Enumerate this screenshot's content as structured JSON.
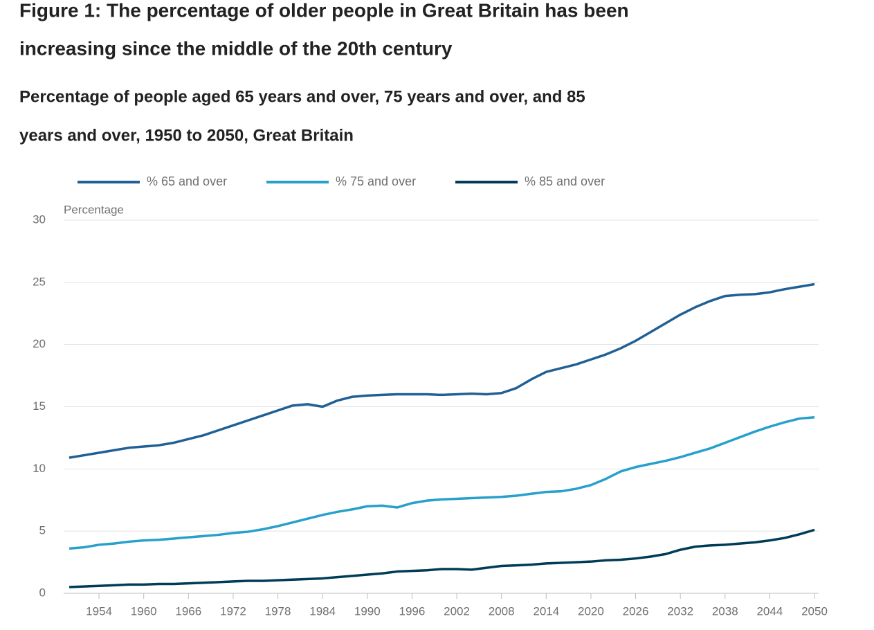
{
  "chart_data": {
    "type": "line",
    "title": [
      "Figure 1: The percentage of older people in Great Britain has been",
      "increasing since the middle of the 20th century"
    ],
    "subtitle": [
      "Percentage of people aged 65 years and over, 75 years and over, and 85",
      "years and over, 1950 to 2050, Great Britain"
    ],
    "ylabel": "Percentage",
    "x": [
      1950,
      1952,
      1954,
      1956,
      1958,
      1960,
      1962,
      1964,
      1966,
      1968,
      1970,
      1972,
      1974,
      1976,
      1978,
      1980,
      1982,
      1984,
      1986,
      1988,
      1990,
      1992,
      1994,
      1996,
      1998,
      2000,
      2002,
      2004,
      2006,
      2008,
      2010,
      2012,
      2014,
      2016,
      2018,
      2020,
      2022,
      2024,
      2026,
      2028,
      2030,
      2032,
      2034,
      2036,
      2038,
      2040,
      2042,
      2044,
      2046,
      2048,
      2050
    ],
    "series": [
      {
        "name": "% 65 and over",
        "color": "#206095",
        "values": [
          10.9,
          11.1,
          11.3,
          11.5,
          11.7,
          11.8,
          11.9,
          12.1,
          12.4,
          12.7,
          13.1,
          13.5,
          13.9,
          14.3,
          14.7,
          15.1,
          15.2,
          15.0,
          15.5,
          15.8,
          15.9,
          15.95,
          16.0,
          16.0,
          16.0,
          15.95,
          16.0,
          16.05,
          16.0,
          16.1,
          16.5,
          17.2,
          17.8,
          18.1,
          18.4,
          18.8,
          19.2,
          19.7,
          20.3,
          21.0,
          21.7,
          22.4,
          23.0,
          23.5,
          23.9,
          24.0,
          24.05,
          24.2,
          24.45,
          24.65,
          24.85
        ]
      },
      {
        "name": "% 75 and over",
        "color": "#27a0cc",
        "values": [
          3.6,
          3.7,
          3.9,
          4.0,
          4.15,
          4.25,
          4.3,
          4.4,
          4.5,
          4.6,
          4.7,
          4.85,
          4.95,
          5.15,
          5.4,
          5.7,
          6.0,
          6.3,
          6.55,
          6.75,
          7.0,
          7.05,
          6.9,
          7.25,
          7.45,
          7.55,
          7.6,
          7.65,
          7.7,
          7.75,
          7.85,
          8.0,
          8.15,
          8.2,
          8.4,
          8.7,
          9.2,
          9.8,
          10.15,
          10.4,
          10.65,
          10.95,
          11.3,
          11.65,
          12.1,
          12.55,
          13.0,
          13.4,
          13.75,
          14.05,
          14.15
        ]
      },
      {
        "name": "% 85 and over",
        "color": "#003c57",
        "values": [
          0.5,
          0.55,
          0.6,
          0.65,
          0.7,
          0.7,
          0.75,
          0.75,
          0.8,
          0.85,
          0.9,
          0.95,
          1.0,
          1.0,
          1.05,
          1.1,
          1.15,
          1.2,
          1.3,
          1.4,
          1.5,
          1.6,
          1.75,
          1.8,
          1.85,
          1.95,
          1.95,
          1.9,
          2.05,
          2.2,
          2.25,
          2.3,
          2.4,
          2.45,
          2.5,
          2.55,
          2.65,
          2.7,
          2.8,
          2.95,
          3.15,
          3.5,
          3.75,
          3.85,
          3.9,
          4.0,
          4.1,
          4.25,
          4.45,
          4.75,
          5.1
        ]
      }
    ],
    "xlim": [
      1950,
      2050
    ],
    "xticks": [
      1954,
      1960,
      1966,
      1972,
      1978,
      1984,
      1990,
      1996,
      2002,
      2008,
      2014,
      2020,
      2026,
      2032,
      2038,
      2044,
      2050
    ],
    "ylim": [
      0,
      30
    ],
    "yticks": [
      0,
      5,
      10,
      15,
      20,
      25,
      30
    ],
    "grid": true,
    "legend": "top"
  }
}
